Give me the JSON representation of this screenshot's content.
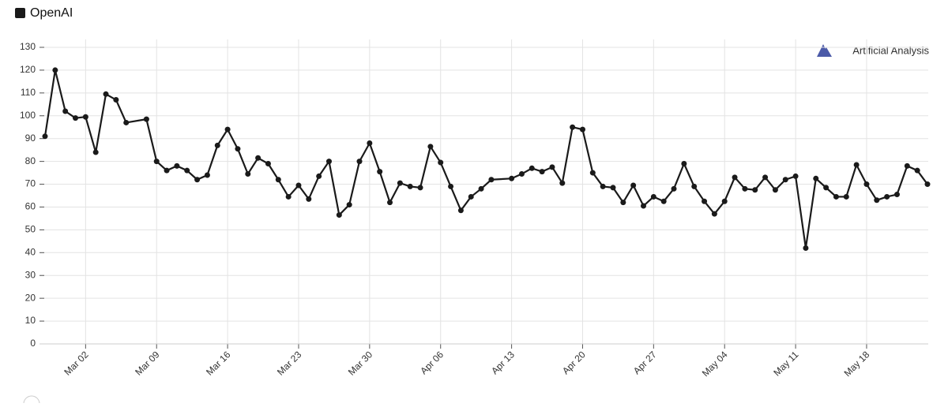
{
  "chart_data": {
    "type": "line",
    "legend": "OpenAI",
    "watermark": "Artificial Analysis",
    "color": "#1a1a1a",
    "x": [
      "Feb 26",
      "Feb 27",
      "Feb 28",
      "Mar 01",
      "Mar 02",
      "Mar 03",
      "Mar 04",
      "Mar 05",
      "Mar 06",
      "Mar 08",
      "Mar 09",
      "Mar 10",
      "Mar 11",
      "Mar 12",
      "Mar 13",
      "Mar 14",
      "Mar 15",
      "Mar 16",
      "Mar 17",
      "Mar 18",
      "Mar 19",
      "Mar 20",
      "Mar 21",
      "Mar 22",
      "Mar 23",
      "Mar 24",
      "Mar 25",
      "Mar 26",
      "Mar 27",
      "Mar 28",
      "Mar 29",
      "Mar 30",
      "Mar 31",
      "Apr 01",
      "Apr 02",
      "Apr 03",
      "Apr 04",
      "Apr 05",
      "Apr 06",
      "Apr 07",
      "Apr 08",
      "Apr 09",
      "Apr 10",
      "Apr 11",
      "Apr 13",
      "Apr 14",
      "Apr 15",
      "Apr 16",
      "Apr 17",
      "Apr 18",
      "Apr 19",
      "Apr 20",
      "Apr 21",
      "Apr 22",
      "Apr 23",
      "Apr 24",
      "Apr 25",
      "Apr 26",
      "Apr 27",
      "Apr 28",
      "Apr 29",
      "Apr 30",
      "May 01",
      "May 02",
      "May 03",
      "May 04",
      "May 05",
      "May 06",
      "May 07",
      "May 08",
      "May 09",
      "May 10",
      "May 11",
      "May 12",
      "May 13",
      "May 14",
      "May 15",
      "May 16",
      "May 17",
      "May 18",
      "May 19",
      "May 20",
      "May 21",
      "May 22",
      "May 23",
      "May 24"
    ],
    "values": [
      91,
      120,
      102,
      99,
      99.5,
      84,
      109.5,
      107,
      97,
      98.5,
      80,
      76,
      78,
      76,
      72,
      74,
      87,
      94,
      85.5,
      74.5,
      81.5,
      79,
      72,
      64.5,
      69.5,
      63.5,
      73.5,
      80,
      56.5,
      61,
      80,
      88,
      75.5,
      62,
      70.5,
      69,
      68.5,
      86.5,
      79.5,
      69,
      58.5,
      64.5,
      68,
      72,
      72.5,
      74.5,
      77,
      75.5,
      77.5,
      70.5,
      95,
      94,
      75,
      69,
      68.5,
      62,
      69.5,
      60.5,
      64.5,
      62.5,
      68,
      79,
      69,
      62.5,
      57,
      62.5,
      73,
      68,
      67.5,
      73,
      67.5,
      72,
      73.5,
      42,
      72.5,
      68.5,
      64.5,
      64.5,
      78.5,
      70,
      63,
      64.5,
      65.5,
      78,
      76,
      70
    ],
    "xlim": [
      "Feb 26",
      "May 24"
    ],
    "xticks": [
      "Mar 02",
      "Mar 09",
      "Mar 16",
      "Mar 23",
      "Mar 30",
      "Apr 06",
      "Apr 13",
      "Apr 20",
      "Apr 27",
      "May 04",
      "May 11",
      "May 18"
    ],
    "ylim": [
      0,
      130
    ],
    "yticks": [
      0,
      10,
      20,
      30,
      40,
      50,
      60,
      70,
      80,
      90,
      100,
      110,
      120,
      130
    ],
    "grid": true
  }
}
